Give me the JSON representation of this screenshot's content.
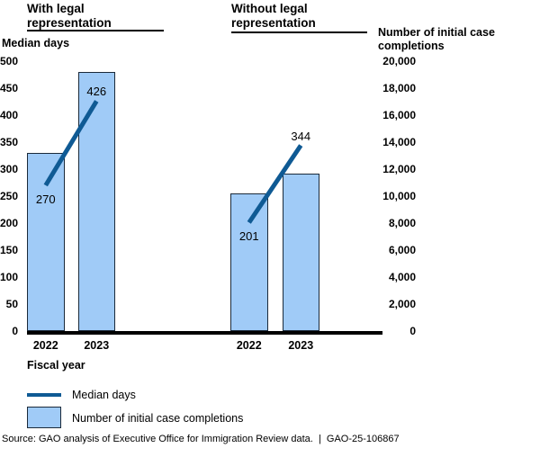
{
  "chart_data": {
    "type": "bar",
    "subtype": "grouped bars with overlaid median-days line",
    "groups": [
      {
        "title": "With legal representation",
        "categories": [
          "2022",
          "2023"
        ],
        "series": [
          {
            "name": "Number of initial case completions",
            "axis": "right",
            "values": [
              13200,
              19200
            ]
          },
          {
            "name": "Median days",
            "axis": "left",
            "values": [
              270,
              426
            ],
            "labels": [
              "270",
              "426"
            ]
          }
        ]
      },
      {
        "title": "Without legal representation",
        "categories": [
          "2022",
          "2023"
        ],
        "series": [
          {
            "name": "Number of initial case completions",
            "axis": "right",
            "values": [
              10200,
              11700
            ]
          },
          {
            "name": "Median days",
            "axis": "left",
            "values": [
              201,
              344
            ],
            "labels": [
              "201",
              "344"
            ]
          }
        ]
      }
    ],
    "left_axis": {
      "label": "Median days",
      "min": 0,
      "max": 500,
      "ticks": [
        "500",
        "450",
        "400",
        "350",
        "300",
        "250",
        "200",
        "150",
        "100",
        "50",
        "0"
      ]
    },
    "right_axis": {
      "label": "Number of initial case completions",
      "min": 0,
      "max": 20000,
      "ticks": [
        "20,000",
        "18,000",
        "16,000",
        "14,000",
        "12,000",
        "10,000",
        "8,000",
        "6,000",
        "4,000",
        "2,000",
        "0"
      ]
    },
    "xlabel": "Fiscal year",
    "legend": [
      {
        "type": "line",
        "label": "Median days"
      },
      {
        "type": "bar",
        "label": "Number of initial case completions"
      }
    ],
    "grid": false,
    "legend_position": "bottom-left"
  },
  "source": "Source: GAO analysis of Executive Office for Immigration Review data.  |  GAO-25-106867",
  "colors": {
    "bar_fill": "#a0cbf7",
    "bar_border": "#1b2a3a",
    "line": "#0f5a94",
    "axis": "#000000",
    "text": "#000000"
  }
}
